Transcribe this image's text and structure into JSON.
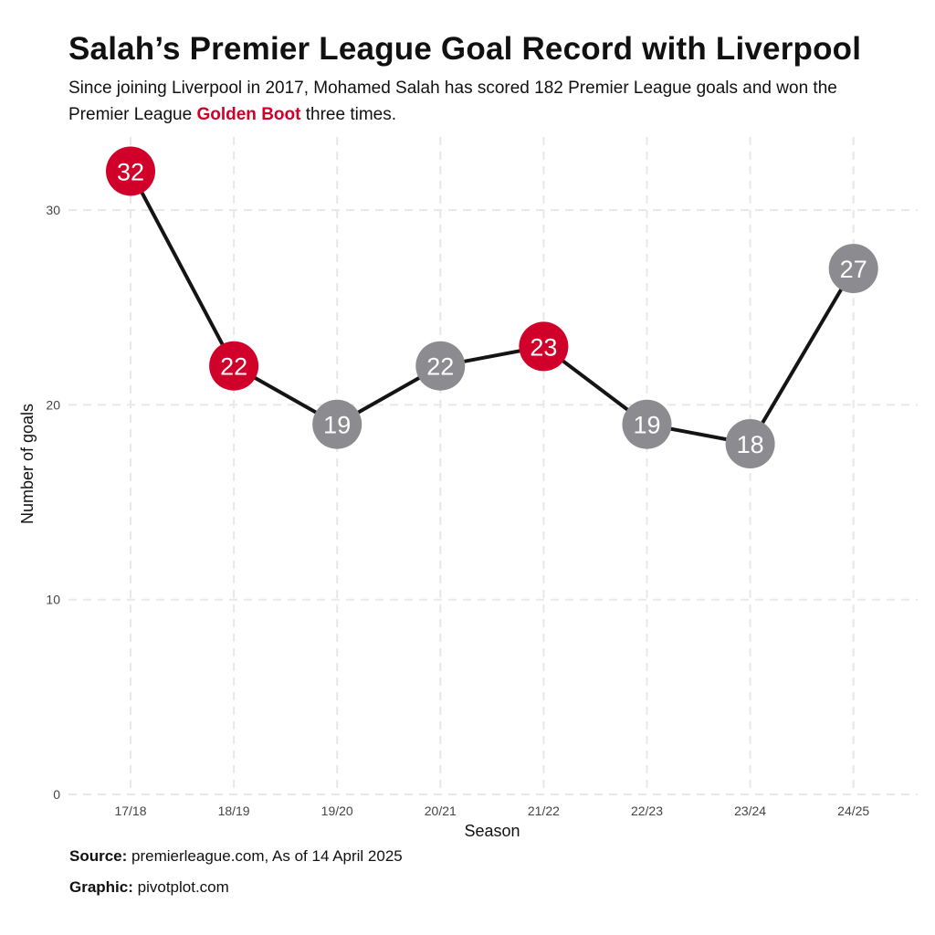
{
  "title": "Salah’s Premier League Goal Record with Liverpool",
  "subtitle": {
    "before": "Since joining Liverpool in 2017, Mohamed Salah has scored 182 Premier League goals and won the Premier League ",
    "highlight": "Golden Boot",
    "after": " three times."
  },
  "colors": {
    "golden_boot": "#d0002a",
    "other": "#8c8c90",
    "line": "#141414",
    "grid": "#e8e8e8",
    "text": "#111111",
    "tick": "#444444"
  },
  "chart_data": {
    "type": "line",
    "categories": [
      "17/18",
      "18/19",
      "19/20",
      "20/21",
      "21/22",
      "22/23",
      "23/24",
      "24/25"
    ],
    "values": [
      32,
      22,
      19,
      22,
      23,
      19,
      18,
      27
    ],
    "golden_boot": [
      true,
      true,
      false,
      false,
      true,
      false,
      false,
      false
    ],
    "data_labels": [
      "32",
      "22",
      "19",
      "22",
      "23",
      "19",
      "18",
      "27"
    ],
    "xlabel": "Season",
    "ylabel": "Number of goals",
    "yticks": [
      0,
      10,
      20,
      30
    ],
    "ylim": [
      0,
      33
    ],
    "grid": true,
    "legend": "none"
  },
  "footer": {
    "source_label": "Source:",
    "source_text": " premierleague.com, As of 14 April 2025",
    "graphic_label": "Graphic:",
    "graphic_text": " pivotplot.com"
  }
}
